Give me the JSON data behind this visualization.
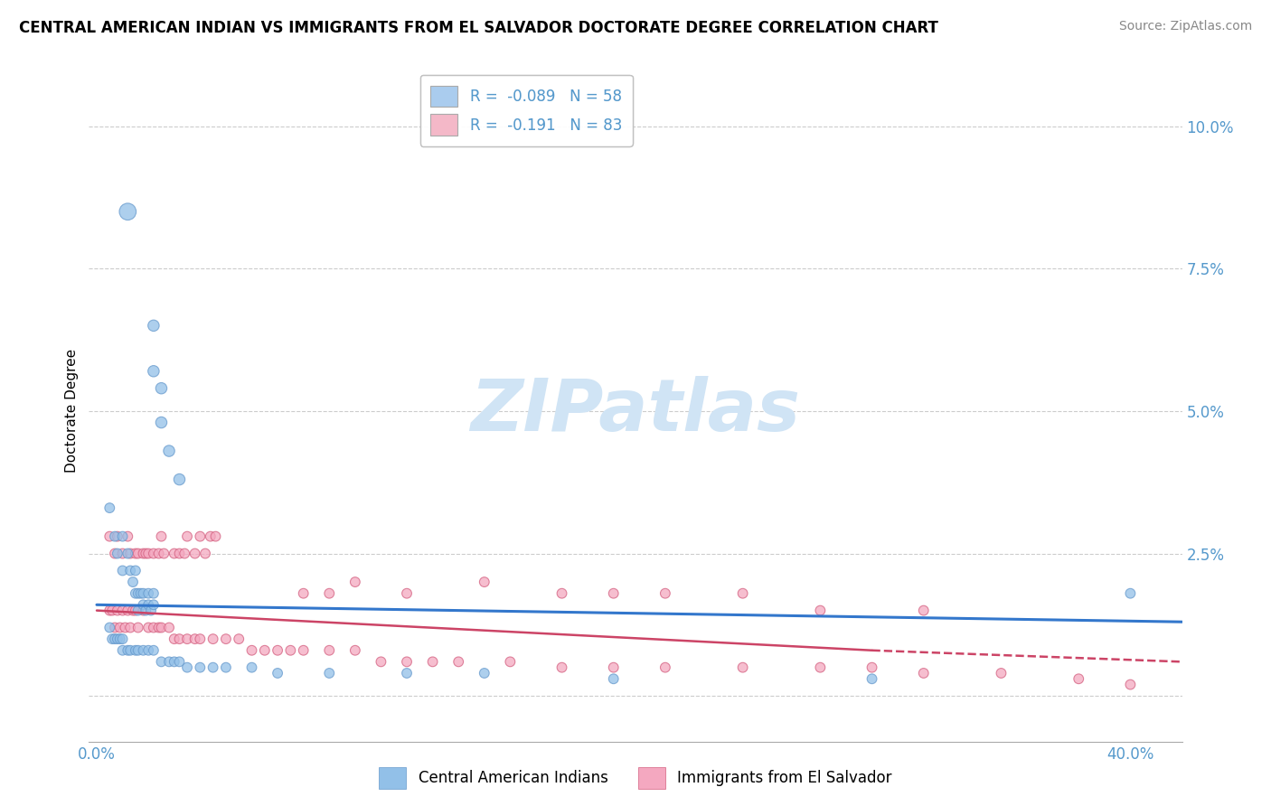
{
  "title": "CENTRAL AMERICAN INDIAN VS IMMIGRANTS FROM EL SALVADOR DOCTORATE DEGREE CORRELATION CHART",
  "source": "Source: ZipAtlas.com",
  "ylabel": "Doctorate Degree",
  "y_ticks": [
    0.0,
    0.025,
    0.05,
    0.075,
    0.1
  ],
  "y_tick_labels": [
    "",
    "2.5%",
    "5.0%",
    "7.5%",
    "10.0%"
  ],
  "x_ticks": [
    0.0,
    0.1,
    0.2,
    0.3,
    0.4
  ],
  "xlim": [
    -0.003,
    0.42
  ],
  "ylim": [
    -0.008,
    0.108
  ],
  "legend_entries": [
    {
      "label": "R =  -0.089   N = 58",
      "color": "#aaccee"
    },
    {
      "label": "R =  -0.191   N = 83",
      "color": "#f4b8c8"
    }
  ],
  "legend_label_blue": "Central American Indians",
  "legend_label_pink": "Immigrants from El Salvador",
  "watermark": "ZIPatlas",
  "series_blue": {
    "color": "#92c0e8",
    "edge_color": "#6699cc",
    "x": [
      0.012,
      0.022,
      0.022,
      0.025,
      0.025,
      0.028,
      0.032,
      0.005,
      0.007,
      0.008,
      0.01,
      0.01,
      0.012,
      0.013,
      0.014,
      0.015,
      0.015,
      0.016,
      0.016,
      0.017,
      0.018,
      0.018,
      0.019,
      0.02,
      0.02,
      0.021,
      0.022,
      0.022,
      0.005,
      0.006,
      0.007,
      0.008,
      0.009,
      0.01,
      0.01,
      0.012,
      0.013,
      0.015,
      0.016,
      0.018,
      0.02,
      0.022,
      0.025,
      0.028,
      0.03,
      0.032,
      0.035,
      0.04,
      0.045,
      0.05,
      0.06,
      0.07,
      0.09,
      0.12,
      0.15,
      0.2,
      0.3,
      0.4
    ],
    "y": [
      0.085,
      0.065,
      0.057,
      0.054,
      0.048,
      0.043,
      0.038,
      0.033,
      0.028,
      0.025,
      0.022,
      0.028,
      0.025,
      0.022,
      0.02,
      0.018,
      0.022,
      0.018,
      0.015,
      0.018,
      0.016,
      0.018,
      0.015,
      0.016,
      0.018,
      0.015,
      0.018,
      0.016,
      0.012,
      0.01,
      0.01,
      0.01,
      0.01,
      0.008,
      0.01,
      0.008,
      0.008,
      0.008,
      0.008,
      0.008,
      0.008,
      0.008,
      0.006,
      0.006,
      0.006,
      0.006,
      0.005,
      0.005,
      0.005,
      0.005,
      0.005,
      0.004,
      0.004,
      0.004,
      0.004,
      0.003,
      0.003,
      0.018
    ],
    "sizes": [
      180,
      80,
      80,
      80,
      80,
      80,
      80,
      60,
      60,
      60,
      60,
      60,
      60,
      60,
      60,
      60,
      60,
      60,
      60,
      60,
      60,
      60,
      60,
      60,
      60,
      60,
      60,
      60,
      60,
      60,
      60,
      60,
      60,
      60,
      60,
      60,
      60,
      60,
      60,
      60,
      60,
      60,
      60,
      60,
      60,
      60,
      60,
      60,
      60,
      60,
      60,
      60,
      60,
      60,
      60,
      60,
      60,
      60
    ]
  },
  "series_pink": {
    "color": "#f4a8c0",
    "edge_color": "#d46080",
    "x": [
      0.005,
      0.007,
      0.008,
      0.01,
      0.012,
      0.013,
      0.015,
      0.016,
      0.018,
      0.019,
      0.02,
      0.022,
      0.024,
      0.025,
      0.026,
      0.03,
      0.032,
      0.034,
      0.035,
      0.038,
      0.04,
      0.042,
      0.044,
      0.046,
      0.005,
      0.006,
      0.007,
      0.008,
      0.009,
      0.01,
      0.011,
      0.012,
      0.013,
      0.014,
      0.015,
      0.016,
      0.018,
      0.02,
      0.022,
      0.024,
      0.025,
      0.028,
      0.03,
      0.032,
      0.035,
      0.038,
      0.04,
      0.045,
      0.05,
      0.055,
      0.06,
      0.065,
      0.07,
      0.075,
      0.08,
      0.09,
      0.1,
      0.11,
      0.12,
      0.13,
      0.14,
      0.16,
      0.18,
      0.2,
      0.22,
      0.25,
      0.28,
      0.3,
      0.32,
      0.35,
      0.38,
      0.4,
      0.08,
      0.09,
      0.1,
      0.12,
      0.15,
      0.18,
      0.2,
      0.22,
      0.25,
      0.28,
      0.32
    ],
    "y": [
      0.028,
      0.025,
      0.028,
      0.025,
      0.028,
      0.025,
      0.025,
      0.025,
      0.025,
      0.025,
      0.025,
      0.025,
      0.025,
      0.028,
      0.025,
      0.025,
      0.025,
      0.025,
      0.028,
      0.025,
      0.028,
      0.025,
      0.028,
      0.028,
      0.015,
      0.015,
      0.012,
      0.015,
      0.012,
      0.015,
      0.012,
      0.015,
      0.012,
      0.015,
      0.015,
      0.012,
      0.015,
      0.012,
      0.012,
      0.012,
      0.012,
      0.012,
      0.01,
      0.01,
      0.01,
      0.01,
      0.01,
      0.01,
      0.01,
      0.01,
      0.008,
      0.008,
      0.008,
      0.008,
      0.008,
      0.008,
      0.008,
      0.006,
      0.006,
      0.006,
      0.006,
      0.006,
      0.005,
      0.005,
      0.005,
      0.005,
      0.005,
      0.005,
      0.004,
      0.004,
      0.003,
      0.002,
      0.018,
      0.018,
      0.02,
      0.018,
      0.02,
      0.018,
      0.018,
      0.018,
      0.018,
      0.015,
      0.015
    ],
    "sizes": [
      60,
      60,
      60,
      60,
      60,
      60,
      60,
      60,
      60,
      60,
      60,
      60,
      60,
      60,
      60,
      60,
      60,
      60,
      60,
      60,
      60,
      60,
      60,
      60,
      60,
      60,
      60,
      60,
      60,
      60,
      60,
      60,
      60,
      60,
      60,
      60,
      60,
      60,
      60,
      60,
      60,
      60,
      60,
      60,
      60,
      60,
      60,
      60,
      60,
      60,
      60,
      60,
      60,
      60,
      60,
      60,
      60,
      60,
      60,
      60,
      60,
      60,
      60,
      60,
      60,
      60,
      60,
      60,
      60,
      60,
      60,
      60,
      60,
      60,
      60,
      60,
      60,
      60,
      60,
      60,
      60,
      60,
      60
    ]
  },
  "trend_blue": {
    "x": [
      0.0,
      0.42
    ],
    "y": [
      0.016,
      0.013
    ],
    "color": "#3377cc",
    "linewidth": 2.2
  },
  "trend_pink": {
    "x": [
      0.0,
      0.3
    ],
    "y": [
      0.015,
      0.008
    ],
    "color": "#cc4466",
    "linewidth": 1.8,
    "linestyle": "-"
  },
  "trend_pink_dashed": {
    "x": [
      0.3,
      0.42
    ],
    "y": [
      0.008,
      0.006
    ],
    "color": "#cc4466",
    "linewidth": 1.8,
    "linestyle": "--"
  },
  "grid_color": "#cccccc",
  "background_color": "#ffffff",
  "title_fontsize": 12,
  "source_fontsize": 10,
  "watermark_color": "#d0e4f5",
  "watermark_fontsize": 58,
  "tick_label_color": "#5599cc"
}
